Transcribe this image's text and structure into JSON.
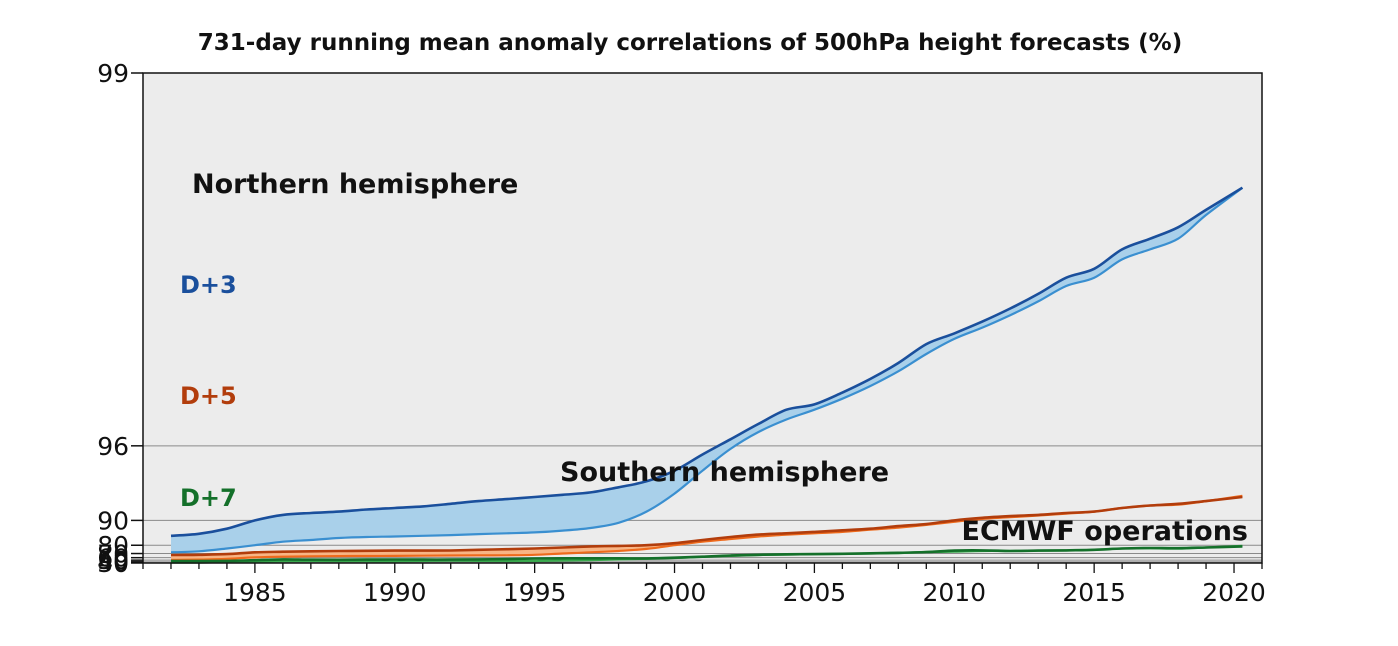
{
  "chart_data": {
    "type": "area",
    "title": "731-day running mean anomaly correlations of 500hPa height forecasts (%)",
    "xlabel": "",
    "ylabel": "",
    "xlim": [
      1981,
      2021
    ],
    "y_ticks": [
      99,
      96,
      90,
      80,
      70,
      60,
      50,
      40,
      30
    ],
    "x_ticks": [
      1985,
      1990,
      1995,
      2000,
      2005,
      2010,
      2015,
      2020
    ],
    "grid": "horizontal",
    "annotations": {
      "northern": "Northern hemisphere",
      "southern": "Southern hemisphere",
      "source": "ECMWF operations"
    },
    "colors": {
      "d3_dark": "#1a4f9c",
      "d3_light": "#3a8fd0",
      "d3_fill": "#a9d0ea",
      "d5_dark": "#b23d0c",
      "d5_light": "#ee6a1c",
      "d5_fill": "#f8b585",
      "d7_dark": "#14702a",
      "d7_light": "#3aa94e",
      "d7_fill": "#a7dba0"
    },
    "series": [
      {
        "name": "D+3",
        "color": "#1a4f9c",
        "northern": [
          [
            1982,
            85.5
          ],
          [
            1983,
            86.3
          ],
          [
            1984,
            88.0
          ],
          [
            1985,
            90.0
          ],
          [
            1986,
            91.0
          ],
          [
            1987,
            91.3
          ],
          [
            1988,
            91.5
          ],
          [
            1989,
            91.8
          ],
          [
            1990,
            92.0
          ],
          [
            1991,
            92.2
          ],
          [
            1992,
            92.5
          ],
          [
            1993,
            92.8
          ],
          [
            1994,
            93.0
          ],
          [
            1995,
            93.2
          ],
          [
            1996,
            93.4
          ],
          [
            1997,
            93.6
          ],
          [
            1998,
            94.0
          ],
          [
            1999,
            94.4
          ],
          [
            2000,
            95.0
          ],
          [
            2001,
            95.7
          ],
          [
            2002,
            96.2
          ],
          [
            2003,
            96.6
          ],
          [
            2004,
            96.9
          ],
          [
            2005,
            97.0
          ],
          [
            2006,
            97.2
          ],
          [
            2007,
            97.4
          ],
          [
            2008,
            97.6
          ],
          [
            2009,
            97.8
          ],
          [
            2010,
            97.9
          ],
          [
            2011,
            98.0
          ],
          [
            2012,
            98.1
          ],
          [
            2013,
            98.2
          ],
          [
            2014,
            98.3
          ],
          [
            2015,
            98.35
          ],
          [
            2016,
            98.45
          ],
          [
            2017,
            98.5
          ],
          [
            2018,
            98.55
          ],
          [
            2019,
            98.62
          ],
          [
            2020.3,
            98.7
          ]
        ],
        "southern": [
          [
            1982,
            72.0
          ],
          [
            1983,
            73.5
          ],
          [
            1984,
            77.0
          ],
          [
            1985,
            80.0
          ],
          [
            1986,
            82.5
          ],
          [
            1987,
            83.5
          ],
          [
            1988,
            84.5
          ],
          [
            1989,
            85.0
          ],
          [
            1990,
            85.2
          ],
          [
            1991,
            85.5
          ],
          [
            1992,
            85.8
          ],
          [
            1993,
            86.2
          ],
          [
            1994,
            86.5
          ],
          [
            1995,
            86.8
          ],
          [
            1996,
            87.4
          ],
          [
            1997,
            88.2
          ],
          [
            1998,
            89.5
          ],
          [
            1999,
            91.5
          ],
          [
            2000,
            93.5
          ],
          [
            2001,
            95.0
          ],
          [
            2002,
            95.9
          ],
          [
            2003,
            96.4
          ],
          [
            2004,
            96.7
          ],
          [
            2005,
            96.9
          ],
          [
            2006,
            97.1
          ],
          [
            2007,
            97.3
          ],
          [
            2008,
            97.5
          ],
          [
            2009,
            97.7
          ],
          [
            2010,
            97.85
          ],
          [
            2011,
            97.95
          ],
          [
            2012,
            98.05
          ],
          [
            2013,
            98.15
          ],
          [
            2014,
            98.25
          ],
          [
            2015,
            98.3
          ],
          [
            2016,
            98.4
          ],
          [
            2017,
            98.45
          ],
          [
            2018,
            98.5
          ],
          [
            2019,
            98.6
          ],
          [
            2020.3,
            98.7
          ]
        ]
      },
      {
        "name": "D+5",
        "color": "#b23d0c",
        "northern": [
          [
            1982,
            67.0
          ],
          [
            1983,
            67.5
          ],
          [
            1984,
            69.0
          ],
          [
            1985,
            72.0
          ],
          [
            1986,
            73.0
          ],
          [
            1987,
            73.5
          ],
          [
            1988,
            74.0
          ],
          [
            1989,
            74.2
          ],
          [
            1990,
            74.5
          ],
          [
            1991,
            74.5
          ],
          [
            1992,
            74.7
          ],
          [
            1993,
            75.5
          ],
          [
            1994,
            76.2
          ],
          [
            1995,
            77.0
          ],
          [
            1996,
            78.0
          ],
          [
            1997,
            79.0
          ],
          [
            1998,
            79.5
          ],
          [
            1999,
            80.0
          ],
          [
            2000,
            81.5
          ],
          [
            2001,
            83.5
          ],
          [
            2002,
            85.0
          ],
          [
            2003,
            86.0
          ],
          [
            2004,
            86.5
          ],
          [
            2005,
            87.0
          ],
          [
            2006,
            87.5
          ],
          [
            2007,
            88.0
          ],
          [
            2008,
            88.7
          ],
          [
            2009,
            89.2
          ],
          [
            2010,
            90.0
          ],
          [
            2011,
            90.5
          ],
          [
            2012,
            90.8
          ],
          [
            2013,
            91.0
          ],
          [
            2014,
            91.3
          ],
          [
            2015,
            91.5
          ],
          [
            2016,
            92.0
          ],
          [
            2017,
            92.3
          ],
          [
            2018,
            92.5
          ],
          [
            2019,
            92.8
          ],
          [
            2020.3,
            93.2
          ]
        ],
        "southern": [
          [
            1982,
            51.0
          ],
          [
            1983,
            52.5
          ],
          [
            1984,
            56.0
          ],
          [
            1985,
            61.0
          ],
          [
            1986,
            63.0
          ],
          [
            1987,
            64.0
          ],
          [
            1988,
            64.5
          ],
          [
            1989,
            64.8
          ],
          [
            1990,
            65.0
          ],
          [
            1991,
            65.5
          ],
          [
            1992,
            66.0
          ],
          [
            1993,
            66.3
          ],
          [
            1994,
            66.5
          ],
          [
            1995,
            67.5
          ],
          [
            1996,
            70.0
          ],
          [
            1997,
            72.0
          ],
          [
            1998,
            74.0
          ],
          [
            1999,
            76.5
          ],
          [
            2000,
            80.0
          ],
          [
            2001,
            82.5
          ],
          [
            2002,
            84.0
          ],
          [
            2003,
            85.2
          ],
          [
            2004,
            86.0
          ],
          [
            2005,
            86.5
          ],
          [
            2006,
            87.0
          ],
          [
            2007,
            87.7
          ],
          [
            2008,
            88.3
          ],
          [
            2009,
            89.0
          ],
          [
            2010,
            89.7
          ],
          [
            2011,
            90.3
          ],
          [
            2012,
            90.6
          ],
          [
            2013,
            90.9
          ],
          [
            2014,
            91.2
          ],
          [
            2015,
            91.5
          ],
          [
            2016,
            92.0
          ],
          [
            2017,
            92.3
          ],
          [
            2018,
            92.4
          ],
          [
            2019,
            92.8
          ],
          [
            2020.3,
            93.3
          ]
        ]
      },
      {
        "name": "D+7",
        "color": "#14702a",
        "northern": [
          [
            1982,
            45.0
          ],
          [
            1983,
            45.3
          ],
          [
            1984,
            46.0
          ],
          [
            1985,
            50.0
          ],
          [
            1986,
            53.5
          ],
          [
            1987,
            52.0
          ],
          [
            1988,
            51.8
          ],
          [
            1989,
            52.5
          ],
          [
            1990,
            53.0
          ],
          [
            1991,
            52.5
          ],
          [
            1992,
            52.5
          ],
          [
            1993,
            53.5
          ],
          [
            1994,
            55.0
          ],
          [
            1995,
            57.0
          ],
          [
            1996,
            58.0
          ],
          [
            1997,
            58.0
          ],
          [
            1998,
            58.0
          ],
          [
            1999,
            57.5
          ],
          [
            2000,
            60.0
          ],
          [
            2001,
            63.0
          ],
          [
            2002,
            66.0
          ],
          [
            2003,
            67.5
          ],
          [
            2004,
            68.5
          ],
          [
            2005,
            69.0
          ],
          [
            2006,
            69.5
          ],
          [
            2007,
            70.5
          ],
          [
            2008,
            71.2
          ],
          [
            2009,
            72.5
          ],
          [
            2010,
            74.5
          ],
          [
            2011,
            74.8
          ],
          [
            2012,
            74.0
          ],
          [
            2013,
            74.5
          ],
          [
            2014,
            74.8
          ],
          [
            2015,
            75.5
          ],
          [
            2016,
            77.0
          ],
          [
            2017,
            77.5
          ],
          [
            2018,
            77.3
          ],
          [
            2019,
            78.0
          ],
          [
            2020.3,
            79.0
          ]
        ],
        "southern": [
          [
            1982,
            33.0
          ],
          [
            1983,
            33.5
          ],
          [
            1984,
            37.0
          ],
          [
            1985,
            41.0
          ],
          [
            1986,
            44.0
          ],
          [
            1987,
            45.5
          ],
          [
            1988,
            45.0
          ],
          [
            1989,
            44.0
          ],
          [
            1990,
            43.5
          ],
          [
            1991,
            46.0
          ],
          [
            1992,
            47.5
          ],
          [
            1993,
            46.0
          ],
          [
            1994,
            45.0
          ],
          [
            1995,
            45.5
          ],
          [
            1996,
            48.0
          ],
          [
            1997,
            50.5
          ],
          [
            1998,
            53.5
          ],
          [
            1999,
            56.0
          ],
          [
            2000,
            59.0
          ],
          [
            2001,
            62.5
          ],
          [
            2002,
            65.0
          ],
          [
            2003,
            67.0
          ],
          [
            2004,
            68.0
          ],
          [
            2005,
            68.8
          ],
          [
            2006,
            69.3
          ],
          [
            2007,
            70.0
          ],
          [
            2008,
            70.8
          ],
          [
            2009,
            72.5
          ],
          [
            2010,
            73.0
          ],
          [
            2011,
            74.0
          ],
          [
            2012,
            74.0
          ],
          [
            2013,
            74.5
          ],
          [
            2014,
            74.8
          ],
          [
            2015,
            75.5
          ],
          [
            2016,
            77.0
          ],
          [
            2017,
            77.2
          ],
          [
            2018,
            76.8
          ],
          [
            2019,
            78.0
          ],
          [
            2020.3,
            79.5
          ]
        ]
      }
    ]
  }
}
